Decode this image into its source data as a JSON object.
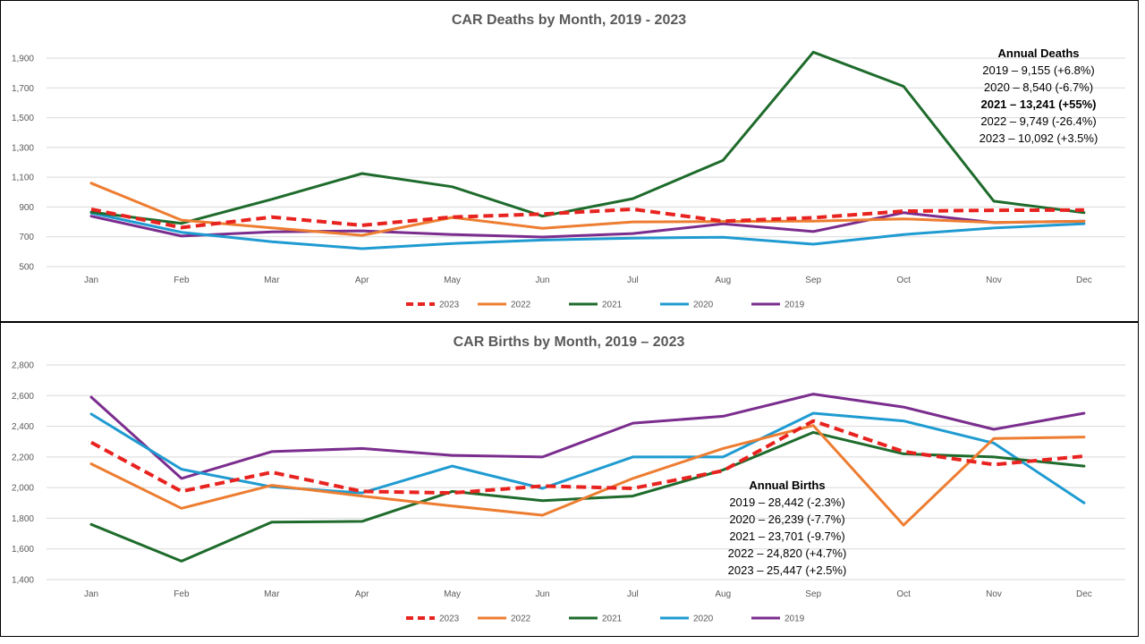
{
  "chart_data": [
    {
      "type": "line",
      "title": "CAR Deaths by Month, 2019 - 2023",
      "xlabel": "",
      "ylabel": "",
      "categories": [
        "Jan",
        "Feb",
        "Mar",
        "Apr",
        "May",
        "Jun",
        "Jul",
        "Aug",
        "Sep",
        "Oct",
        "Nov",
        "Dec"
      ],
      "ylim": [
        500,
        2000
      ],
      "yticks": [
        500,
        700,
        900,
        1100,
        1300,
        1500,
        1700,
        1900
      ],
      "ytick_labels": [
        "500",
        "700",
        "900",
        "1,100",
        "1,300",
        "1,500",
        "1,700",
        "1,900"
      ],
      "grid": true,
      "legend_position": "bottom",
      "series": [
        {
          "name": "2023",
          "color": "#e8231f",
          "dashed": true,
          "values": [
            885,
            762,
            832,
            777,
            832,
            853,
            885,
            805,
            828,
            872,
            878,
            880
          ]
        },
        {
          "name": "2022",
          "color": "#ed7d31",
          "dashed": false,
          "values": [
            1060,
            812,
            760,
            710,
            830,
            757,
            800,
            803,
            805,
            820,
            796,
            804
          ]
        },
        {
          "name": "2021",
          "color": "#1e6b2c",
          "dashed": false,
          "values": [
            866,
            790,
            952,
            1125,
            1036,
            838,
            956,
            1214,
            1940,
            1711,
            939,
            862
          ]
        },
        {
          "name": "2020",
          "color": "#1f9bd1",
          "dashed": false,
          "values": [
            860,
            730,
            667,
            620,
            655,
            678,
            691,
            697,
            650,
            715,
            759,
            788
          ]
        },
        {
          "name": "2019",
          "color": "#7b2d8e",
          "dashed": false,
          "values": [
            838,
            705,
            733,
            740,
            715,
            698,
            722,
            787,
            735,
            862,
            795,
            805
          ]
        }
      ],
      "annotation": {
        "heading": "Annual Deaths",
        "lines": [
          {
            "text": "2019 – 9,155 (+6.8%)",
            "bold": false
          },
          {
            "text": "2020 – 8,540 (-6.7%)",
            "bold": false
          },
          {
            "text": "2021 – 13,241 (+55%)",
            "bold": true
          },
          {
            "text": "2022 – 9,749 (-26.4%)",
            "bold": false
          },
          {
            "text": "2023 – 10,092 (+3.5%)",
            "bold": false
          }
        ]
      }
    },
    {
      "type": "line",
      "title": "CAR Births by Month, 2019 – 2023",
      "xlabel": "",
      "ylabel": "",
      "categories": [
        "Jan",
        "Feb",
        "Mar",
        "Apr",
        "May",
        "Jun",
        "Jul",
        "Aug",
        "Sep",
        "Oct",
        "Nov",
        "Dec"
      ],
      "ylim": [
        1400,
        2800
      ],
      "yticks": [
        1400,
        1600,
        1800,
        2000,
        2200,
        2400,
        2600,
        2800
      ],
      "ytick_labels": [
        "1,400",
        "1,600",
        "1,800",
        "2,000",
        "2,200",
        "2,400",
        "2,600",
        "2,800"
      ],
      "grid": true,
      "legend_position": "bottom",
      "series": [
        {
          "name": "2023",
          "color": "#e8231f",
          "dashed": true,
          "values": [
            2295,
            1975,
            2100,
            1975,
            1965,
            2010,
            1995,
            2110,
            2435,
            2235,
            2150,
            2205
          ]
        },
        {
          "name": "2022",
          "color": "#ed7d31",
          "dashed": false,
          "values": [
            2155,
            1865,
            2015,
            1945,
            1880,
            1820,
            2060,
            2255,
            2405,
            1755,
            2320,
            2330
          ]
        },
        {
          "name": "2021",
          "color": "#1e6b2c",
          "dashed": false,
          "values": [
            1760,
            1520,
            1775,
            1780,
            1975,
            1915,
            1945,
            2115,
            2360,
            2220,
            2200,
            2140
          ]
        },
        {
          "name": "2020",
          "color": "#1f9bd1",
          "dashed": false,
          "values": [
            2480,
            2120,
            2005,
            1965,
            2140,
            1995,
            2200,
            2200,
            2485,
            2435,
            2290,
            1900
          ]
        },
        {
          "name": "2019",
          "color": "#7b2d8e",
          "dashed": false,
          "values": [
            2590,
            2060,
            2235,
            2255,
            2210,
            2200,
            2420,
            2465,
            2610,
            2525,
            2380,
            2485
          ]
        }
      ],
      "annotation": {
        "heading": "Annual Births",
        "lines": [
          {
            "text": "2019 – 28,442 (-2.3%)",
            "bold": false
          },
          {
            "text": "2020 – 26,239 (-7.7%)",
            "bold": false
          },
          {
            "text": "2021 – 23,701 (-9.7%)",
            "bold": false
          },
          {
            "text": "2022 – 24,820 (+4.7%)",
            "bold": false
          },
          {
            "text": "2023 – 25,447 (+2.5%)",
            "bold": false
          }
        ]
      }
    }
  ]
}
